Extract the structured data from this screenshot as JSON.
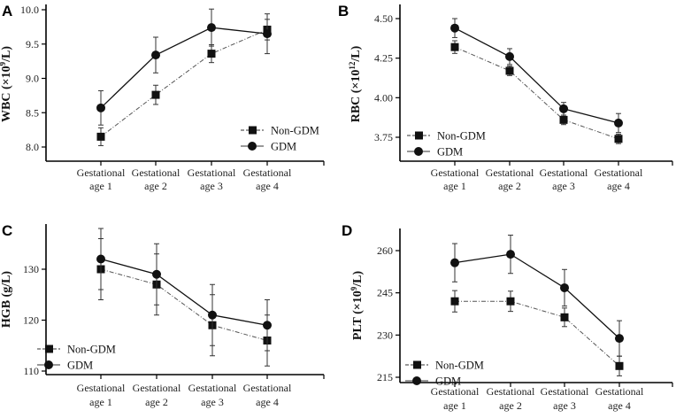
{
  "chart_data": [
    {
      "type": "line",
      "panel": "A",
      "ylabel": "WBC (×10⁹/L)",
      "ylabel_base": "WBC (×10",
      "ylabel_sup": "9",
      "ylabel_end": "/L)",
      "categories": [
        [
          "Gestational",
          "age 1"
        ],
        [
          "Gestational",
          "age 2"
        ],
        [
          "Gestational",
          "age 3"
        ],
        [
          "Gestational",
          "age 4"
        ]
      ],
      "yticks": [
        "8.0",
        "8.5",
        "9.0",
        "9.5",
        "10.0"
      ],
      "ylim": [
        8.0,
        10.0
      ],
      "legend": "bottom-right",
      "series": [
        {
          "name": "Non-GDM",
          "marker": "square",
          "dash": true,
          "values": [
            8.15,
            8.76,
            9.36,
            9.71
          ],
          "errors": [
            0.13,
            0.14,
            0.13,
            0.15
          ]
        },
        {
          "name": "GDM",
          "marker": "circle",
          "dash": false,
          "values": [
            8.57,
            9.34,
            9.74,
            9.65
          ],
          "errors": [
            0.25,
            0.26,
            0.27,
            0.29
          ]
        }
      ]
    },
    {
      "type": "line",
      "panel": "B",
      "ylabel": "RBC (×10¹²/L)",
      "ylabel_base": "RBC (×10",
      "ylabel_sup": "12",
      "ylabel_end": "/L)",
      "categories": [
        [
          "Gestational",
          "age 1"
        ],
        [
          "Gestational",
          "age 2"
        ],
        [
          "Gestational",
          "age 3"
        ],
        [
          "Gestational",
          "age 4"
        ]
      ],
      "yticks": [
        "3.75",
        "4.00",
        "4.25",
        "4.50"
      ],
      "ylim": [
        3.75,
        4.5
      ],
      "legend": "bottom-left",
      "series": [
        {
          "name": "Non-GDM",
          "marker": "square",
          "dash": true,
          "values": [
            4.32,
            4.17,
            3.86,
            3.74
          ],
          "errors": [
            0.04,
            0.03,
            0.03,
            0.03
          ]
        },
        {
          "name": "GDM",
          "marker": "circle",
          "dash": false,
          "values": [
            4.44,
            4.26,
            3.93,
            3.84
          ],
          "errors": [
            0.06,
            0.05,
            0.04,
            0.06
          ]
        }
      ]
    },
    {
      "type": "line",
      "panel": "C",
      "ylabel": "HGB (g/L)",
      "ylabel_base": "HGB (g/L)",
      "ylabel_sup": "",
      "ylabel_end": "",
      "categories": [
        [
          "Gestational",
          "age 1"
        ],
        [
          "Gestational",
          "age 2"
        ],
        [
          "Gestational",
          "age 3"
        ],
        [
          "Gestational",
          "age 4"
        ]
      ],
      "yticks": [
        "110",
        "120",
        "130"
      ],
      "ylim": [
        110,
        130
      ],
      "legend": "bottom-left",
      "series": [
        {
          "name": "Non-GDM",
          "marker": "square",
          "dash": true,
          "values": [
            130,
            127,
            119,
            116
          ],
          "errors": [
            6,
            6,
            6,
            5
          ]
        },
        {
          "name": "GDM",
          "marker": "circle",
          "dash": false,
          "values": [
            132,
            129,
            121,
            119
          ],
          "errors": [
            6,
            6,
            6,
            5
          ]
        }
      ]
    },
    {
      "type": "line",
      "panel": "D",
      "ylabel": "PLT (×10⁹/L)",
      "ylabel_base": "PLT (×10",
      "ylabel_sup": "9",
      "ylabel_end": "/L)",
      "categories": [
        [
          "Gestational",
          "age 1"
        ],
        [
          "Gestational",
          "age 2"
        ],
        [
          "Gestational",
          "age 3"
        ],
        [
          "Gestational",
          "age 4"
        ]
      ],
      "yticks": [
        "215",
        "230",
        "245",
        "260"
      ],
      "ylim": [
        215,
        260
      ],
      "legend": "bottom-left",
      "series": [
        {
          "name": "Non-GDM",
          "marker": "square",
          "dash": true,
          "values": [
            242,
            242,
            236.3,
            219
          ],
          "errors": [
            3.8,
            3.6,
            3.3,
            3.5
          ]
        },
        {
          "name": "GDM",
          "marker": "circle",
          "dash": false,
          "values": [
            255.7,
            258.7,
            246.8,
            228.8
          ],
          "errors": [
            6.8,
            6.8,
            6.5,
            6.3
          ]
        }
      ]
    }
  ]
}
